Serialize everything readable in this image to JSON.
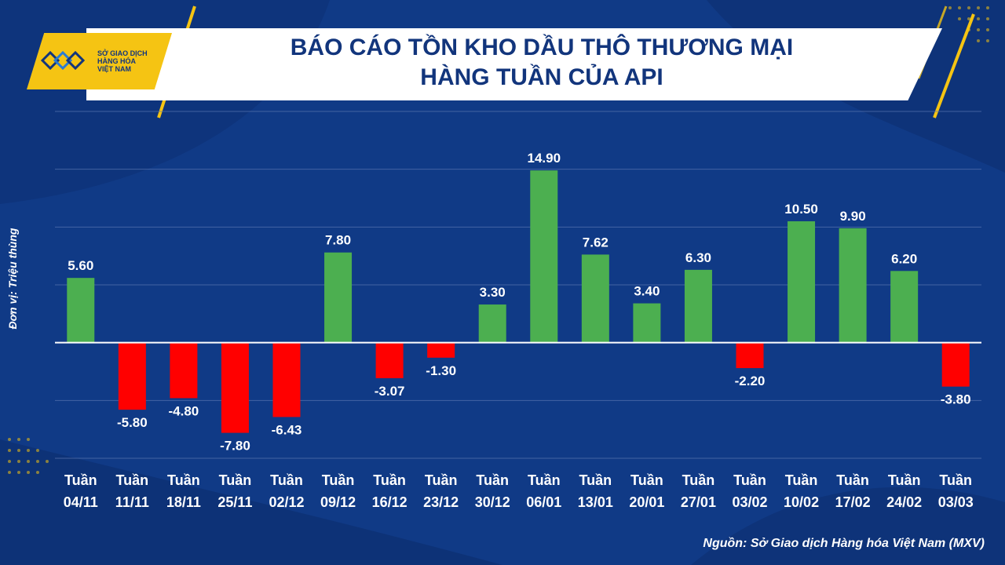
{
  "header": {
    "title_line1": "BÁO CÁO TỒN KHO DẦU THÔ THƯƠNG MẠI",
    "title_line2": "HÀNG TUẦN CỦA API"
  },
  "logo": {
    "line1": "SỞ GIAO DỊCH",
    "line2": "HÀNG HÓA",
    "line3": "VIỆT NAM"
  },
  "source": "Nguồn: Sở Giao dịch Hàng hóa Việt Nam (MXV)",
  "colors": {
    "background": "#103a86",
    "positive": "#4caf50",
    "negative": "#ff0000",
    "title": "#12357c",
    "accent": "#f5c413"
  },
  "chart_data": {
    "type": "bar",
    "title": "BÁO CÁO TỒN KHO DẦU THÔ THƯƠNG MẠI HÀNG TUẦN CỦA API",
    "ylabel": "Đơn vị: Triệu thùng",
    "xlabel": "",
    "categories": [
      [
        "Tuần",
        "04/11"
      ],
      [
        "Tuần",
        "11/11"
      ],
      [
        "Tuần",
        "18/11"
      ],
      [
        "Tuần",
        "25/11"
      ],
      [
        "Tuần",
        "02/12"
      ],
      [
        "Tuần",
        "09/12"
      ],
      [
        "Tuần",
        "16/12"
      ],
      [
        "Tuần",
        "23/12"
      ],
      [
        "Tuần",
        "30/12"
      ],
      [
        "Tuần",
        "06/01"
      ],
      [
        "Tuần",
        "13/01"
      ],
      [
        "Tuần",
        "20/01"
      ],
      [
        "Tuần",
        "27/01"
      ],
      [
        "Tuần",
        "03/02"
      ],
      [
        "Tuần",
        "10/02"
      ],
      [
        "Tuần",
        "17/02"
      ],
      [
        "Tuần",
        "24/02"
      ],
      [
        "Tuần",
        "03/03"
      ]
    ],
    "values": [
      5.6,
      -5.8,
      -4.8,
      -7.8,
      -6.43,
      7.8,
      -3.07,
      -1.3,
      3.3,
      14.9,
      7.62,
      3.4,
      6.3,
      -2.2,
      10.5,
      9.9,
      6.2,
      -3.8
    ],
    "labels": [
      "5.60",
      "-5.80",
      "-4.80",
      "-7.80",
      "-6.43",
      "7.80",
      "-3.07",
      "-1.30",
      "3.30",
      "14.90",
      "7.62",
      "3.40",
      "6.30",
      "-2.20",
      "10.50",
      "9.90",
      "6.20",
      "-3.80"
    ],
    "ylim": [
      -10,
      20
    ],
    "gridlines": [
      -10,
      -5,
      0,
      5,
      10,
      15,
      20
    ],
    "grid": true
  }
}
